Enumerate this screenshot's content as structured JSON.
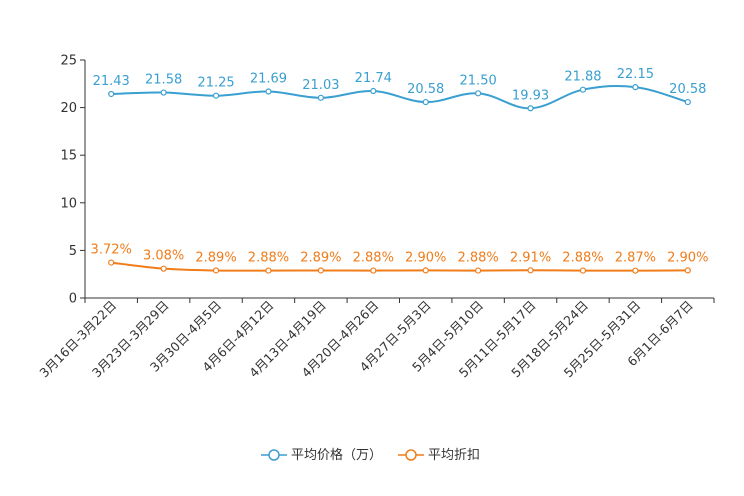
{
  "chart_data": {
    "type": "line",
    "categories": [
      "3月16日-3月22日",
      "3月23日-3月29日",
      "3月30日-4月5日",
      "4月6日-4月12日",
      "4月13日-4月19日",
      "4月20日-4月26日",
      "4月27日-5月3日",
      "5月4日-5月10日",
      "5月11日-5月17日",
      "5月18日-5月24日",
      "5月25日-5月31日",
      "6月1日-6月7日"
    ],
    "series": [
      {
        "name": "平均价格（万）",
        "color": "#3a9fd1",
        "values": [
          21.43,
          21.58,
          21.25,
          21.69,
          21.03,
          21.74,
          20.58,
          21.5,
          19.93,
          21.88,
          22.15,
          20.58
        ],
        "labels": [
          "21.43",
          "21.58",
          "21.25",
          "21.69",
          "21.03",
          "21.74",
          "20.58",
          "21.50",
          "19.93",
          "21.88",
          "22.15",
          "20.58"
        ]
      },
      {
        "name": "平均折扣",
        "color": "#f07c1a",
        "values": [
          3.72,
          3.08,
          2.89,
          2.88,
          2.89,
          2.88,
          2.9,
          2.88,
          2.91,
          2.88,
          2.87,
          2.9
        ],
        "labels": [
          "3.72%",
          "3.08%",
          "2.89%",
          "2.88%",
          "2.89%",
          "2.88%",
          "2.90%",
          "2.88%",
          "2.91%",
          "2.88%",
          "2.87%",
          "2.90%"
        ]
      }
    ],
    "ylim": [
      0,
      25
    ],
    "yticks": [
      0,
      5,
      10,
      15,
      20,
      25
    ],
    "ytick_labels": [
      "0",
      "5",
      "10",
      "15",
      "20",
      "25"
    ],
    "legend_position": "bottom-center",
    "grid": false
  }
}
